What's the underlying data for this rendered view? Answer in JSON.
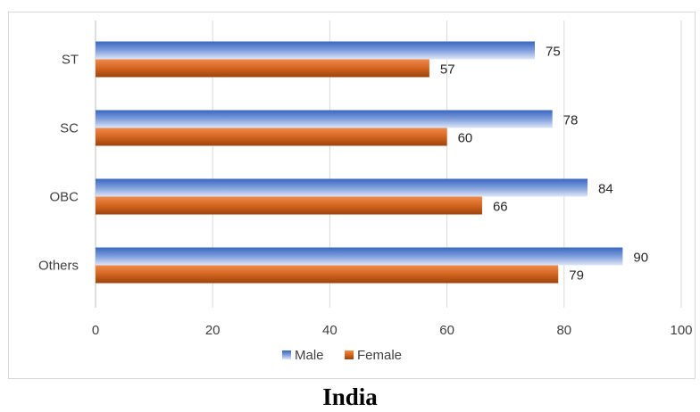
{
  "chart_data": {
    "type": "bar",
    "orientation": "horizontal",
    "categories": [
      "ST",
      "SC",
      "OBC",
      "Others"
    ],
    "series": [
      {
        "name": "Male",
        "values": [
          75,
          78,
          84,
          90
        ],
        "color": "#4472c4"
      },
      {
        "name": "Female",
        "values": [
          57,
          60,
          66,
          79
        ],
        "color": "#c55a11"
      }
    ],
    "xlim": [
      0,
      100
    ],
    "x_ticks": [
      0,
      20,
      40,
      60,
      80,
      100
    ],
    "grid": true,
    "legend_position": "bottom",
    "data_labels": true
  },
  "caption": "India"
}
